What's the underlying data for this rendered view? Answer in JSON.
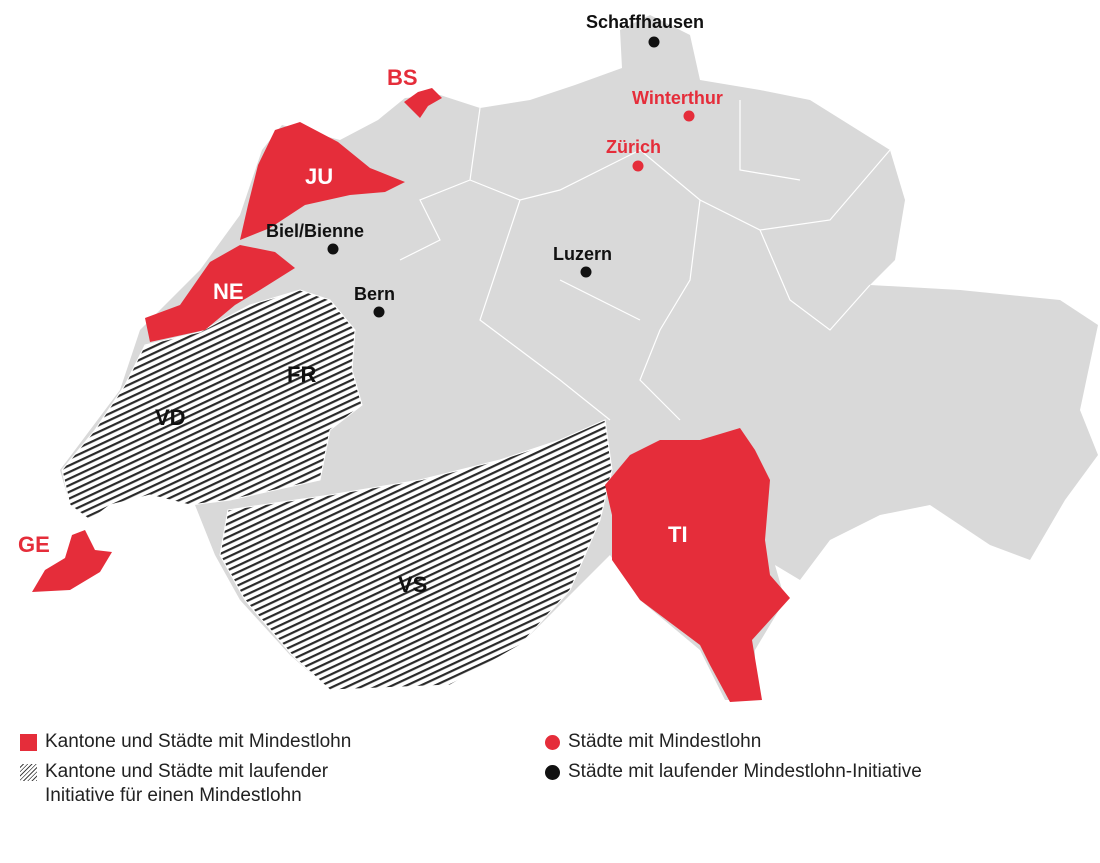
{
  "colors": {
    "minimum_wage": "#e52d3a",
    "land": "#d9d9d9",
    "initiative_hatch": "#2a2a2a",
    "city_initiative": "#111111"
  },
  "cantons_minimum_wage": [
    "JU",
    "NE",
    "GE",
    "BS",
    "TI"
  ],
  "cantons_initiative": [
    "VD",
    "FR",
    "VS"
  ],
  "cities_minimum_wage": [
    "Winterthur",
    "Zürich"
  ],
  "cities_initiative": [
    "Schaffhausen",
    "Biel/Bienne",
    "Bern",
    "Luzern"
  ],
  "legend": {
    "canton_red": "Kantone und Städte mit Mindestlohn",
    "canton_hatched_line1": "Kantone und Städte mit laufender",
    "canton_hatched_line2": "Initiative für einen Mindestlohn",
    "city_red": "Städte mit Mindestlohn",
    "city_black": "Städte mit laufender Mindestlohn-Initiative"
  }
}
